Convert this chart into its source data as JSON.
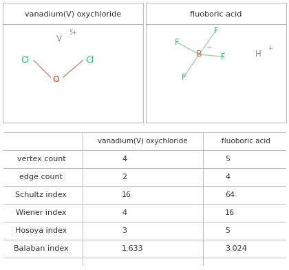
{
  "title1": "vanadium(V) oxychloride",
  "title2": "fluoboric acid",
  "row_labels": [
    "vertex count",
    "edge count",
    "Schultz index",
    "Wiener index",
    "Hosoya index",
    "Balaban index"
  ],
  "col1_values": [
    "4",
    "2",
    "16",
    "4",
    "3",
    "1.633"
  ],
  "col2_values": [
    "5",
    "4",
    "64",
    "16",
    "5",
    "3.024"
  ],
  "bg_color": "#ffffff",
  "border_color": "#bbbbbb",
  "text_color": "#333333",
  "header_color": "#333333"
}
